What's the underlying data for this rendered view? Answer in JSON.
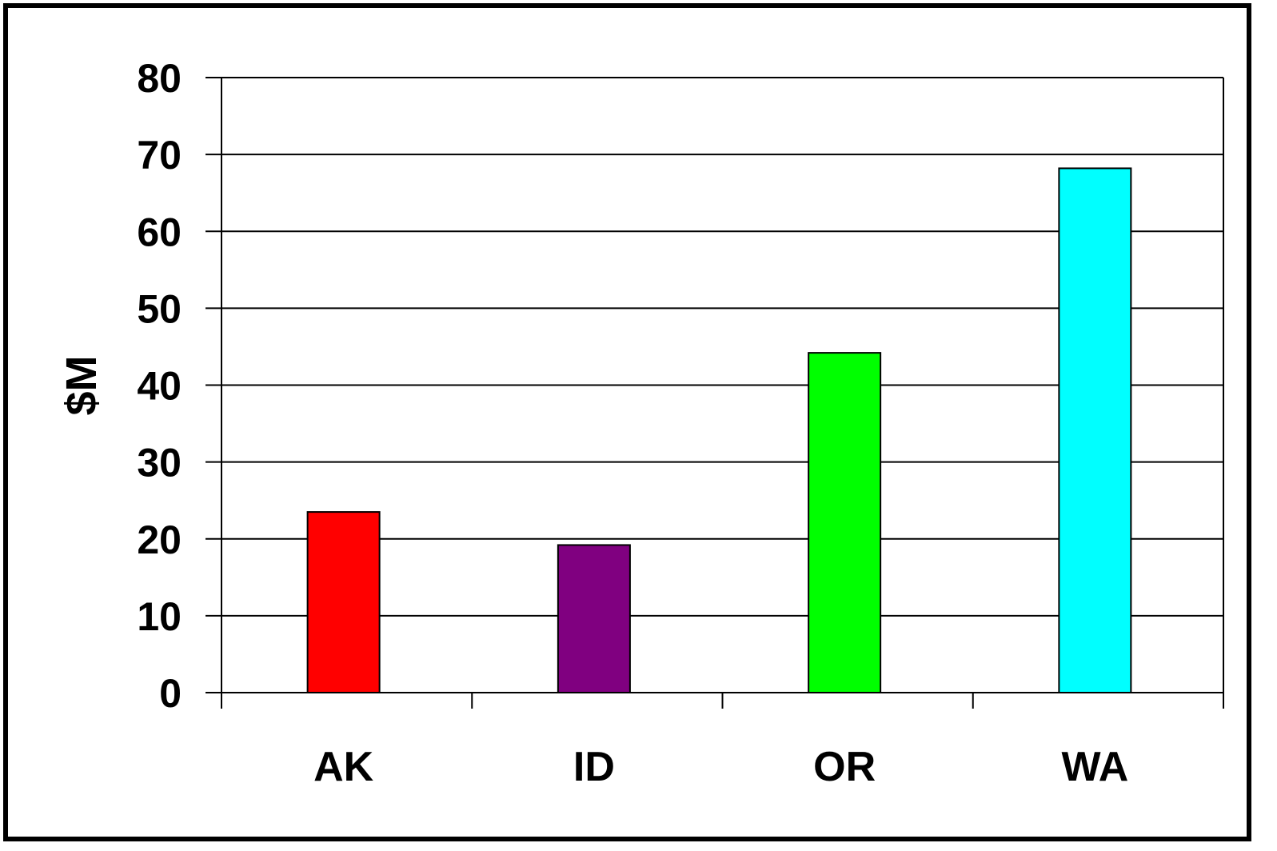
{
  "chart_data": {
    "type": "bar",
    "categories": [
      "AK",
      "ID",
      "OR",
      "WA"
    ],
    "values": [
      23.5,
      19.2,
      44.2,
      68.2
    ],
    "colors": [
      "#ff0000",
      "#800080",
      "#00ff00",
      "#00ffff"
    ],
    "title": "",
    "xlabel": "",
    "ylabel": "$M",
    "ylim": [
      0,
      80
    ],
    "yticks": [
      "0",
      "10",
      "20",
      "30",
      "40",
      "50",
      "60",
      "70",
      "80"
    ],
    "grid": true,
    "legend": "none"
  }
}
